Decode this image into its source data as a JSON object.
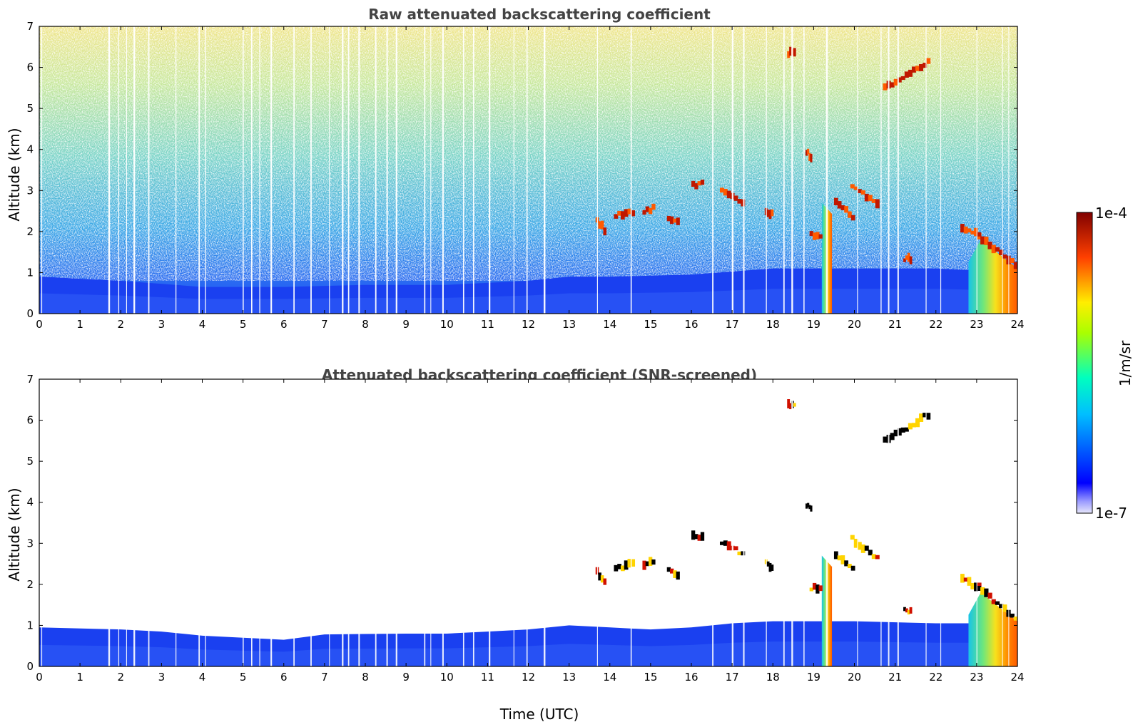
{
  "chart_data": [
    {
      "type": "heatmap",
      "title": "Raw attenuated backscattering coefficient",
      "xlabel": "",
      "ylabel": "Altitude (km)",
      "xlim": [
        0,
        24
      ],
      "ylim": [
        0,
        7
      ],
      "xticks": [
        0,
        1,
        2,
        3,
        4,
        5,
        6,
        7,
        8,
        9,
        10,
        11,
        12,
        13,
        14,
        15,
        16,
        17,
        18,
        19,
        20,
        21,
        22,
        23,
        24
      ],
      "yticks": [
        0,
        1,
        2,
        3,
        4,
        5,
        6,
        7
      ],
      "boundary_layer_top_km": [
        [
          0,
          0.9
        ],
        [
          2,
          0.8
        ],
        [
          4,
          0.65
        ],
        [
          6,
          0.65
        ],
        [
          8,
          0.7
        ],
        [
          10,
          0.7
        ],
        [
          12,
          0.8
        ],
        [
          13,
          0.9
        ],
        [
          14,
          0.9
        ],
        [
          16,
          0.95
        ],
        [
          18,
          1.1
        ],
        [
          20,
          1.1
        ],
        [
          22,
          1.1
        ],
        [
          24,
          1.0
        ]
      ],
      "cloud_layers": [
        {
          "t0": 13.65,
          "t1": 13.9,
          "alt0": 2.3,
          "alt1": 1.95
        },
        {
          "t0": 14.1,
          "t1": 14.6,
          "alt0": 2.4,
          "alt1": 2.5
        },
        {
          "t0": 14.8,
          "t1": 15.1,
          "alt0": 2.5,
          "alt1": 2.6
        },
        {
          "t0": 15.4,
          "t1": 15.7,
          "alt0": 2.35,
          "alt1": 2.2
        },
        {
          "t0": 16.0,
          "t1": 16.3,
          "alt0": 3.15,
          "alt1": 3.15
        },
        {
          "t0": 16.7,
          "t1": 17.3,
          "alt0": 3.0,
          "alt1": 2.7
        },
        {
          "t0": 17.8,
          "t1": 18.0,
          "alt0": 2.5,
          "alt1": 2.4
        },
        {
          "t0": 18.35,
          "t1": 18.55,
          "alt0": 6.35,
          "alt1": 6.35
        },
        {
          "t0": 18.8,
          "t1": 18.95,
          "alt0": 3.95,
          "alt1": 3.75
        },
        {
          "t0": 18.9,
          "t1": 19.2,
          "alt0": 1.9,
          "alt1": 1.9
        },
        {
          "t0": 19.5,
          "t1": 20.0,
          "alt0": 2.7,
          "alt1": 2.3
        },
        {
          "t0": 19.9,
          "t1": 20.6,
          "alt0": 3.1,
          "alt1": 2.6
        },
        {
          "t0": 20.7,
          "t1": 21.85,
          "alt0": 5.5,
          "alt1": 6.2
        },
        {
          "t0": 21.2,
          "t1": 21.4,
          "alt0": 1.35,
          "alt1": 1.35
        },
        {
          "t0": 22.6,
          "t1": 23.1,
          "alt0": 2.1,
          "alt1": 1.9
        },
        {
          "t0": 23.0,
          "t1": 24.0,
          "alt0": 1.9,
          "alt1": 1.1
        }
      ],
      "precipitation_shafts": [
        {
          "t0": 19.2,
          "t1": 19.45,
          "top_km": 2.7
        },
        {
          "t0": 22.8,
          "t1": 24.0,
          "top_km": 1.8
        }
      ],
      "colorbar": {
        "label": "1/m/sr",
        "min_label": "1e-7",
        "max_label": "1e-4",
        "scale": "log"
      }
    },
    {
      "type": "heatmap",
      "title": "Attenuated backscattering coefficient (SNR-screened)",
      "xlabel": "Time (UTC)",
      "ylabel": "Altitude (km)",
      "xlim": [
        0,
        24
      ],
      "ylim": [
        0,
        7
      ],
      "xticks": [
        0,
        1,
        2,
        3,
        4,
        5,
        6,
        7,
        8,
        9,
        10,
        11,
        12,
        13,
        14,
        15,
        16,
        17,
        18,
        19,
        20,
        21,
        22,
        23,
        24
      ],
      "yticks": [
        0,
        1,
        2,
        3,
        4,
        5,
        6,
        7
      ],
      "boundary_layer_top_km": [
        [
          0,
          0.95
        ],
        [
          2,
          0.9
        ],
        [
          3,
          0.85
        ],
        [
          4,
          0.75
        ],
        [
          5,
          0.7
        ],
        [
          6,
          0.65
        ],
        [
          7,
          0.78
        ],
        [
          9,
          0.8
        ],
        [
          10,
          0.8
        ],
        [
          11,
          0.85
        ],
        [
          12,
          0.9
        ],
        [
          13,
          1.0
        ],
        [
          14,
          0.95
        ],
        [
          15,
          0.9
        ],
        [
          16,
          0.95
        ],
        [
          17,
          1.05
        ],
        [
          18,
          1.1
        ],
        [
          20,
          1.1
        ],
        [
          22,
          1.05
        ],
        [
          23,
          1.05
        ],
        [
          24,
          1.0
        ]
      ],
      "cloud_layers": [
        {
          "t0": 13.65,
          "t1": 13.9,
          "alt0": 2.3,
          "alt1": 1.95
        },
        {
          "t0": 14.1,
          "t1": 14.6,
          "alt0": 2.4,
          "alt1": 2.5
        },
        {
          "t0": 14.8,
          "t1": 15.1,
          "alt0": 2.5,
          "alt1": 2.6
        },
        {
          "t0": 15.4,
          "t1": 15.7,
          "alt0": 2.35,
          "alt1": 2.2
        },
        {
          "t0": 16.0,
          "t1": 16.3,
          "alt0": 3.15,
          "alt1": 3.15
        },
        {
          "t0": 16.7,
          "t1": 17.3,
          "alt0": 3.0,
          "alt1": 2.7
        },
        {
          "t0": 17.8,
          "t1": 18.0,
          "alt0": 2.5,
          "alt1": 2.4
        },
        {
          "t0": 18.35,
          "t1": 18.55,
          "alt0": 6.35,
          "alt1": 6.35
        },
        {
          "t0": 18.8,
          "t1": 18.95,
          "alt0": 3.95,
          "alt1": 3.75
        },
        {
          "t0": 18.9,
          "t1": 19.2,
          "alt0": 1.9,
          "alt1": 1.9
        },
        {
          "t0": 19.5,
          "t1": 20.0,
          "alt0": 2.7,
          "alt1": 2.3
        },
        {
          "t0": 19.9,
          "t1": 20.6,
          "alt0": 3.1,
          "alt1": 2.6
        },
        {
          "t0": 20.7,
          "t1": 21.85,
          "alt0": 5.5,
          "alt1": 6.2
        },
        {
          "t0": 21.2,
          "t1": 21.4,
          "alt0": 1.35,
          "alt1": 1.35
        },
        {
          "t0": 22.6,
          "t1": 23.1,
          "alt0": 2.1,
          "alt1": 1.9
        },
        {
          "t0": 23.0,
          "t1": 24.0,
          "alt0": 1.9,
          "alt1": 1.1
        }
      ],
      "precipitation_shafts": [
        {
          "t0": 19.2,
          "t1": 19.45,
          "top_km": 2.7
        },
        {
          "t0": 22.8,
          "t1": 24.0,
          "top_km": 1.8
        }
      ],
      "colorbar": {
        "label": "1/m/sr",
        "min_label": "1e-7",
        "max_label": "1e-4",
        "scale": "log"
      }
    }
  ],
  "colorbar": {
    "label": "1/m/sr",
    "max_label": "1e-4",
    "min_label": "1e-7",
    "colormap": "jet"
  }
}
